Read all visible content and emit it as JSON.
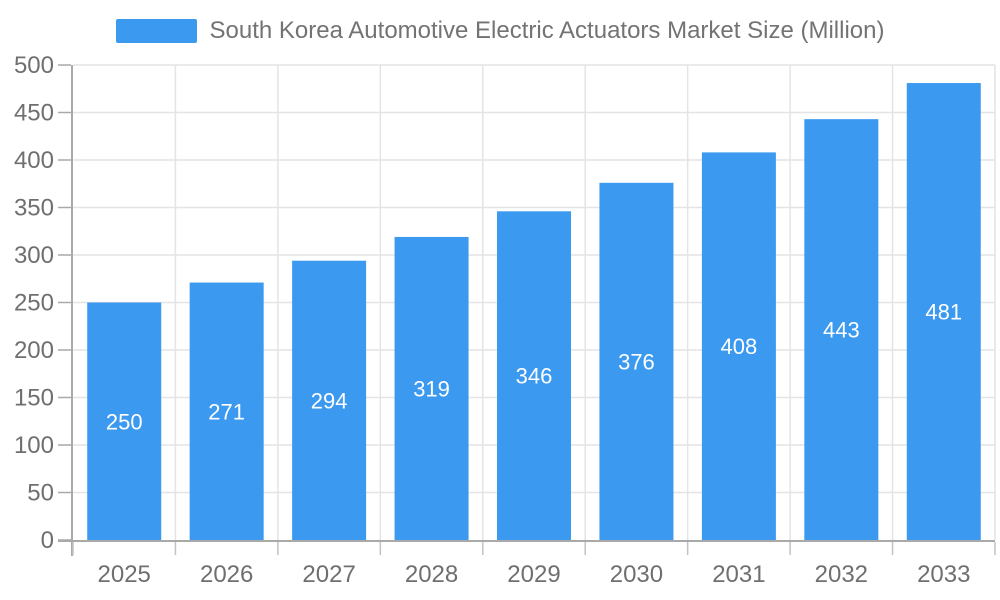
{
  "chart_data": {
    "type": "bar",
    "title": "South Korea Automotive Electric Actuators Market Size (Million)",
    "legend_position": "top",
    "categories": [
      "2025",
      "2026",
      "2027",
      "2028",
      "2029",
      "2030",
      "2031",
      "2032",
      "2033"
    ],
    "values": [
      250,
      271,
      294,
      319,
      346,
      376,
      408,
      443,
      481
    ],
    "xlabel": "",
    "ylabel": "",
    "ylim": [
      0,
      500
    ],
    "ytick_step": 50,
    "yticks": [
      0,
      50,
      100,
      150,
      200,
      250,
      300,
      350,
      400,
      450,
      500
    ],
    "grid": true,
    "bar_labels_inside": true,
    "colors": {
      "bar": "#3B99F0",
      "bar_label": "#FFFFFF",
      "grid": "#E4E4E4",
      "axis_line": "#A9A9A9",
      "tick": "#C2C2C2",
      "axis_text": "#6F6F6F",
      "legend_text": "#737373",
      "background": "#FFFFFF"
    }
  }
}
